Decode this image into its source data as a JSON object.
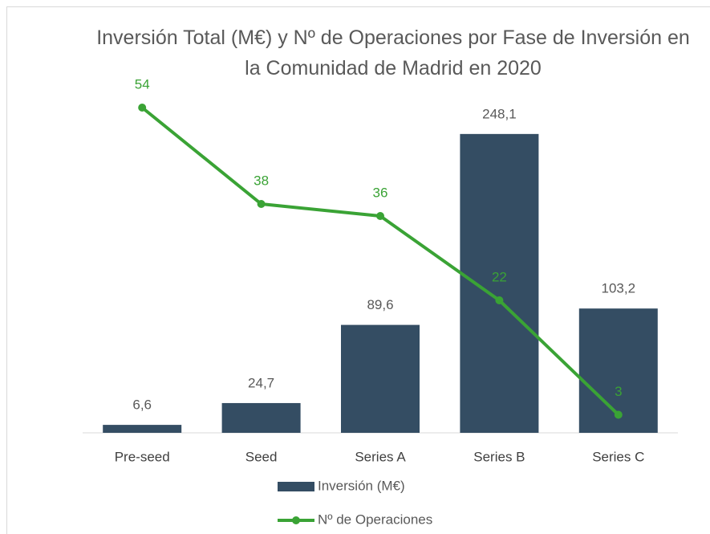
{
  "chart_data": {
    "type": "bar-line",
    "title": "Inversión Total (M€)  y Nº de Operaciones por Fase de Inversión en la Comunidad de Madrid en 2020",
    "categories": [
      "Pre-seed",
      "Seed",
      "Series A",
      "Series B",
      "Series C"
    ],
    "series": [
      {
        "name": "Inversión (M€)",
        "type": "bar",
        "color": "#344d63",
        "values": [
          6.6,
          24.7,
          89.6,
          248.1,
          103.2
        ],
        "value_labels": [
          "6,6",
          "24,7",
          "89,6",
          "248,1",
          "103,2"
        ]
      },
      {
        "name": "Nº de Operaciones",
        "type": "line",
        "axis": "y2",
        "color": "#3aa335",
        "values": [
          54,
          38,
          36,
          22,
          3
        ]
      }
    ],
    "ylim": [
      0,
      300
    ],
    "y2lim": [
      0,
      60
    ],
    "legend": "bottom"
  }
}
